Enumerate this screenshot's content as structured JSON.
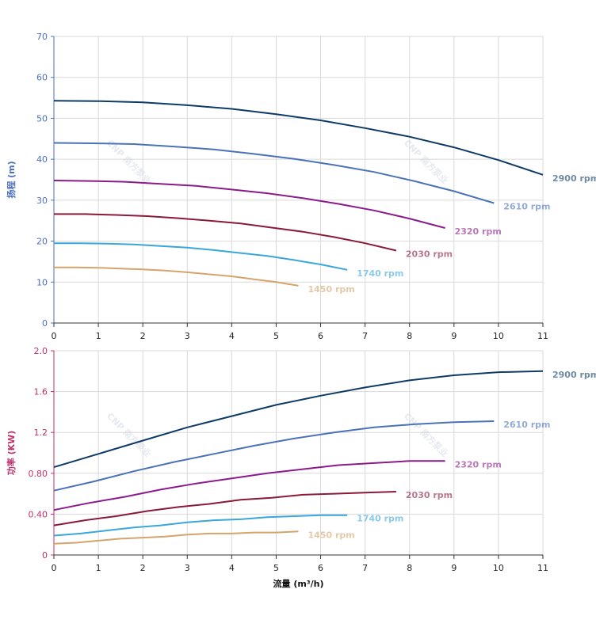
{
  "chart_data": [
    {
      "type": "line",
      "y_label": "扬程 (m)",
      "axis_color": "#4a6fc0",
      "watermark": "CNP 南方泵业",
      "xlim": [
        0,
        11
      ],
      "xticks": [
        0,
        1,
        2,
        3,
        4,
        5,
        6,
        7,
        8,
        9,
        10,
        11
      ],
      "ylim": [
        0,
        70
      ],
      "yticks": [
        0,
        10,
        20,
        30,
        40,
        50,
        60,
        70
      ],
      "grid": true,
      "series": [
        {
          "name": "2900 rpm",
          "color": "#0d3b66",
          "x": [
            0,
            1,
            2,
            3,
            4,
            5,
            6,
            7,
            8,
            9,
            10,
            11
          ],
          "values": [
            54.3,
            54.2,
            53.9,
            53.2,
            52.3,
            51.0,
            49.5,
            47.6,
            45.5,
            42.9,
            39.8,
            36.2
          ]
        },
        {
          "name": "2610 rpm",
          "color": "#4a72b8",
          "x": [
            0,
            0.9,
            1.8,
            2.7,
            3.6,
            4.5,
            5.4,
            6.3,
            7.2,
            8.1,
            9.0,
            9.9
          ],
          "values": [
            44.0,
            43.9,
            43.7,
            43.1,
            42.4,
            41.3,
            40.1,
            38.6,
            36.9,
            34.7,
            32.2,
            29.3
          ]
        },
        {
          "name": "2320 rpm",
          "color": "#8b1a8b",
          "x": [
            0,
            0.8,
            1.6,
            2.4,
            3.2,
            4.0,
            4.8,
            5.6,
            6.4,
            7.2,
            8.0,
            8.8
          ],
          "values": [
            34.8,
            34.7,
            34.5,
            34.0,
            33.5,
            32.6,
            31.7,
            30.5,
            29.1,
            27.5,
            25.5,
            23.2
          ]
        },
        {
          "name": "2030 rpm",
          "color": "#8b1a3a",
          "x": [
            0,
            0.7,
            1.4,
            2.1,
            2.8,
            3.5,
            4.2,
            4.9,
            5.6,
            6.3,
            7.0,
            7.7
          ],
          "values": [
            26.6,
            26.6,
            26.4,
            26.1,
            25.6,
            25.0,
            24.3,
            23.3,
            22.3,
            21.0,
            19.5,
            17.7
          ]
        },
        {
          "name": "1740 rpm",
          "color": "#3aa6dc",
          "x": [
            0,
            0.6,
            1.2,
            1.8,
            2.4,
            3.0,
            3.6,
            4.2,
            4.8,
            5.4,
            6.0,
            6.6
          ],
          "values": [
            19.5,
            19.5,
            19.4,
            19.2,
            18.8,
            18.4,
            17.8,
            17.1,
            16.4,
            15.4,
            14.3,
            13.0
          ]
        },
        {
          "name": "1450 rpm",
          "color": "#d4a46a",
          "x": [
            0,
            0.5,
            1.0,
            1.5,
            2.0,
            2.5,
            3.0,
            3.5,
            4.0,
            4.5,
            5.0,
            5.5
          ],
          "values": [
            13.6,
            13.6,
            13.5,
            13.3,
            13.1,
            12.8,
            12.4,
            11.9,
            11.4,
            10.7,
            10.0,
            9.1
          ]
        }
      ]
    },
    {
      "type": "line",
      "y_label": "功率 (KW)",
      "x_label": "流量 (m³/h)",
      "axis_color": "#c0306a",
      "watermark": "CNP 南方泵业",
      "xlim": [
        0,
        11
      ],
      "xticks": [
        0,
        1,
        2,
        3,
        4,
        5,
        6,
        7,
        8,
        9,
        10,
        11
      ],
      "ylim": [
        0,
        2.0
      ],
      "yticks": [
        0,
        {
          "value": 0.4,
          "label": "0.40"
        },
        {
          "value": 0.8,
          "label": "0.80"
        },
        1.2,
        1.6,
        {
          "value": 2.0,
          "label": "2.0"
        }
      ],
      "grid": true,
      "series": [
        {
          "name": "2900 rpm",
          "color": "#0d3b66",
          "x": [
            0,
            1,
            2,
            3,
            4,
            5,
            6,
            7,
            8,
            9,
            10,
            11
          ],
          "values": [
            0.86,
            0.99,
            1.12,
            1.25,
            1.36,
            1.47,
            1.56,
            1.64,
            1.71,
            1.76,
            1.79,
            1.8
          ]
        },
        {
          "name": "2610 rpm",
          "color": "#4a72b8",
          "x": [
            0,
            0.9,
            1.8,
            2.7,
            3.6,
            4.5,
            5.4,
            6.3,
            7.2,
            8.1,
            9.0,
            9.9
          ],
          "values": [
            0.63,
            0.72,
            0.82,
            0.91,
            0.99,
            1.07,
            1.14,
            1.2,
            1.25,
            1.28,
            1.3,
            1.31
          ]
        },
        {
          "name": "2320 rpm",
          "color": "#8b1a8b",
          "x": [
            0,
            0.8,
            1.6,
            2.4,
            3.2,
            4.0,
            4.8,
            5.6,
            6.4,
            7.2,
            8.0,
            8.8
          ],
          "values": [
            0.44,
            0.51,
            0.57,
            0.64,
            0.7,
            0.75,
            0.8,
            0.84,
            0.88,
            0.9,
            0.92,
            0.92
          ]
        },
        {
          "name": "2030 rpm",
          "color": "#8b1a3a",
          "x": [
            0,
            0.7,
            1.4,
            2.1,
            2.8,
            3.5,
            4.2,
            4.9,
            5.6,
            6.3,
            7.0,
            7.7
          ],
          "values": [
            0.29,
            0.34,
            0.38,
            0.43,
            0.47,
            0.5,
            0.54,
            0.56,
            0.59,
            0.6,
            0.61,
            0.62
          ]
        },
        {
          "name": "1740 rpm",
          "color": "#3aa6dc",
          "x": [
            0,
            0.6,
            1.2,
            1.8,
            2.4,
            3.0,
            3.6,
            4.2,
            4.8,
            5.4,
            6.0,
            6.6
          ],
          "values": [
            0.19,
            0.21,
            0.24,
            0.27,
            0.29,
            0.32,
            0.34,
            0.35,
            0.37,
            0.38,
            0.39,
            0.39
          ]
        },
        {
          "name": "1450 rpm",
          "color": "#d4a46a",
          "x": [
            0,
            0.5,
            1.0,
            1.5,
            2.0,
            2.5,
            3.0,
            3.5,
            4.0,
            4.5,
            5.0,
            5.5
          ],
          "values": [
            0.11,
            0.12,
            0.14,
            0.16,
            0.17,
            0.18,
            0.2,
            0.21,
            0.21,
            0.22,
            0.22,
            0.23
          ]
        }
      ]
    }
  ]
}
